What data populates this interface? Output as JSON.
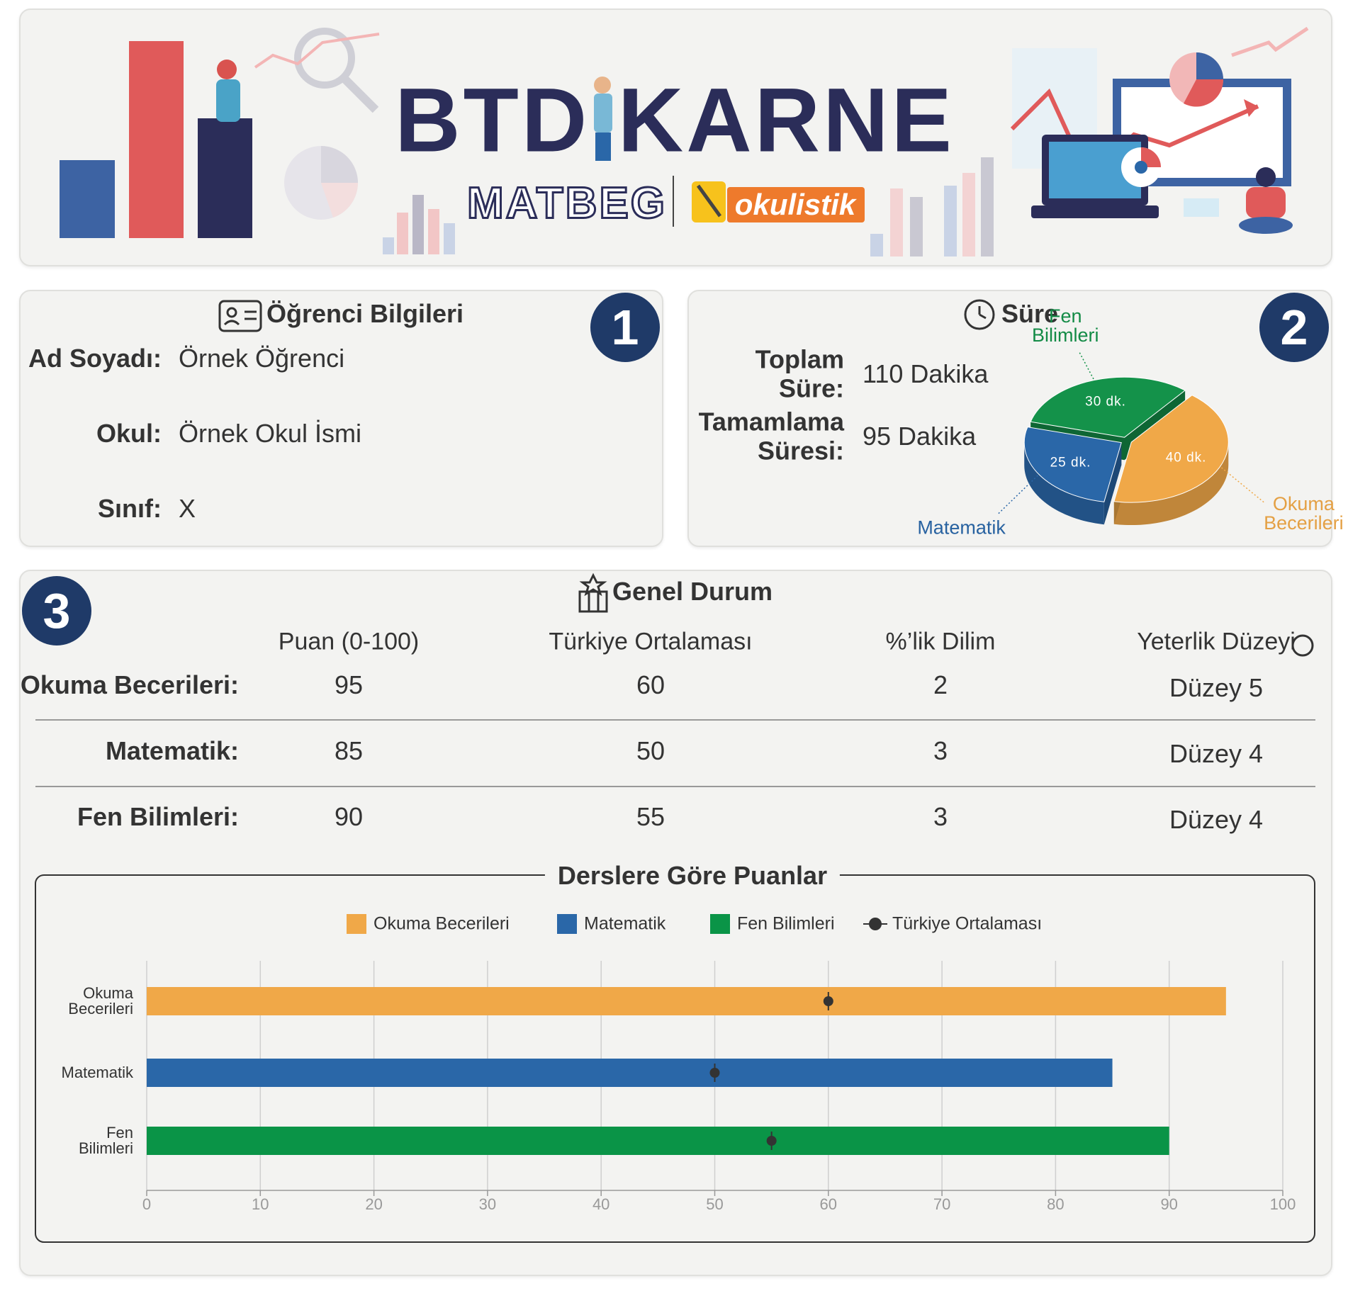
{
  "header": {
    "title": "BTD KARNE",
    "brand": "MATBEG",
    "partner": "okulistik"
  },
  "student": {
    "title": "Öğrenci Bilgileri",
    "badge": "1",
    "fields": [
      {
        "label": "Ad Soyadı:",
        "value": "Örnek Öğrenci"
      },
      {
        "label": "Okul:",
        "value": "Örnek Okul İsmi"
      },
      {
        "label": "Sınıf:",
        "value": "X"
      }
    ]
  },
  "duration": {
    "title": "Süre",
    "badge": "2",
    "fields": [
      {
        "label": "Toplam Süre:",
        "value": "110 Dakika"
      },
      {
        "label": "Tamamlama Süresi:",
        "value": "95 Dakika"
      }
    ]
  },
  "general": {
    "title": "Genel Durum",
    "badge": "3",
    "columns": [
      "Puan (0-100)",
      "Türkiye Ortalaması",
      "%’lik Dilim",
      "Yeterlik Düzeyi"
    ],
    "rows": [
      {
        "label": "Okuma Becerileri:",
        "cells": [
          95,
          60,
          2,
          "Düzey 5"
        ]
      },
      {
        "label": "Matematik:",
        "cells": [
          85,
          50,
          3,
          "Düzey 4"
        ]
      },
      {
        "label": "Fen Bilimleri:",
        "cells": [
          90,
          55,
          3,
          "Düzey 4"
        ]
      }
    ]
  },
  "chart_data": [
    {
      "type": "pie",
      "categories": [
        "Fen Bilimleri",
        "Okuma Becerileri",
        "Matematik"
      ],
      "values": [
        30,
        40,
        25
      ],
      "value_labels": [
        "30 dk.",
        "40 dk.",
        "25 dk."
      ],
      "colors": [
        "#14924a",
        "#f0a848",
        "#2a67a8"
      ]
    },
    {
      "type": "bar",
      "orientation": "horizontal",
      "title": "Derslere Göre Puanlar",
      "categories": [
        "Okuma Becerileri",
        "Matematik",
        "Fen Bilimleri"
      ],
      "values": [
        95,
        85,
        90
      ],
      "colors": [
        "#f0a848",
        "#2a67a8",
        "#0a9447"
      ],
      "average": {
        "name": "Türkiye Ortalaması",
        "values": [
          60,
          50,
          55
        ],
        "color": "#333333"
      },
      "xlim": [
        0,
        100
      ],
      "xticks": [
        0,
        10,
        20,
        30,
        40,
        50,
        60,
        70,
        80,
        90,
        100
      ],
      "grid": true
    }
  ]
}
